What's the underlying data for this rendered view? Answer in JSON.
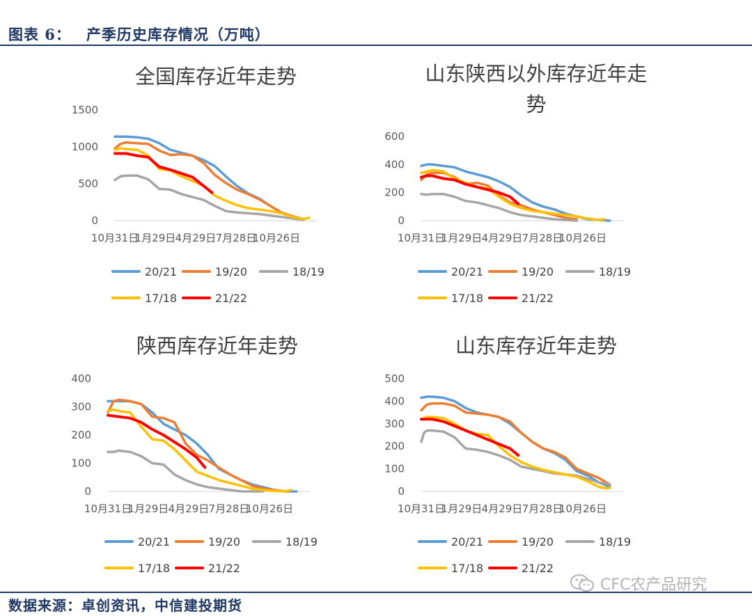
{
  "header": {
    "label": "图表 6：",
    "title": "产季历史库存情况（万吨）"
  },
  "footer": {
    "source": "数据来源：卓创资讯，中信建投期货",
    "watermark": "CFC农产品研究"
  },
  "colors": {
    "20/21": "#5b9bd5",
    "19/20": "#ed7d31",
    "18/19": "#a5a5a5",
    "17/18": "#ffc000",
    "21/22": "#ff0000",
    "brand": "#1f3864"
  },
  "chart_data": [
    {
      "type": "line",
      "title": [
        "全国库存近年走势"
      ],
      "xlabel": "",
      "ylabel": "",
      "x_ticks": [
        "10月31日",
        "1月29日",
        "4月29日",
        "7月28日",
        "10月26日"
      ],
      "xlim": [
        0,
        364
      ],
      "ylim": [
        0,
        1500
      ],
      "y_ticks": [
        0,
        500,
        1000,
        1500
      ],
      "grid": false,
      "legend": "bottom",
      "legend_rows": [
        [
          "20/21",
          "19/20",
          "18/19"
        ],
        [
          "17/18",
          "21/22"
        ]
      ],
      "series": [
        {
          "name": "20/21",
          "x": [
            0,
            20,
            40,
            60,
            80,
            100,
            120,
            140,
            160,
            180,
            200,
            220,
            240,
            260,
            280,
            300,
            320,
            340
          ],
          "y": [
            1140,
            1140,
            1130,
            1110,
            1050,
            960,
            920,
            880,
            820,
            740,
            600,
            470,
            370,
            300,
            200,
            110,
            60,
            20
          ]
        },
        {
          "name": "19/20",
          "x": [
            0,
            10,
            20,
            40,
            60,
            80,
            100,
            120,
            140,
            160,
            180,
            200,
            220,
            240,
            260,
            280,
            300,
            320,
            340
          ],
          "y": [
            980,
            1040,
            1060,
            1050,
            1040,
            950,
            890,
            900,
            880,
            780,
            620,
            510,
            420,
            360,
            290,
            200,
            110,
            60,
            20
          ]
        },
        {
          "name": "18/19",
          "x": [
            0,
            10,
            20,
            40,
            60,
            80,
            100,
            120,
            140,
            160,
            180,
            200,
            220,
            240,
            260,
            280,
            300,
            320,
            340
          ],
          "y": [
            550,
            600,
            610,
            610,
            560,
            430,
            420,
            360,
            320,
            280,
            200,
            130,
            110,
            100,
            90,
            70,
            50,
            30,
            10
          ]
        },
        {
          "name": "17/18",
          "x": [
            0,
            10,
            20,
            40,
            60,
            80,
            100,
            120,
            140,
            160,
            180,
            200,
            220,
            240,
            260,
            280,
            300,
            320,
            340,
            350
          ],
          "y": [
            960,
            980,
            970,
            960,
            880,
            700,
            680,
            600,
            540,
            470,
            340,
            270,
            210,
            170,
            150,
            130,
            100,
            50,
            20,
            40
          ]
        },
        {
          "name": "21/22",
          "x": [
            0,
            20,
            40,
            60,
            80,
            100,
            120,
            140,
            160,
            175
          ],
          "y": [
            910,
            910,
            880,
            860,
            730,
            690,
            640,
            590,
            470,
            380
          ]
        }
      ]
    },
    {
      "type": "line",
      "title": [
        "山东陕西以外库存近年走",
        "势"
      ],
      "xlabel": "",
      "ylabel": "",
      "x_ticks": [
        "10月31日",
        "1月29日",
        "4月29日",
        "7月28日",
        "10月26日"
      ],
      "xlim": [
        0,
        364
      ],
      "ylim": [
        0,
        600
      ],
      "y_ticks": [
        0,
        200,
        400,
        600
      ],
      "grid": false,
      "legend": "bottom",
      "legend_rows": [
        [
          "20/21",
          "19/20",
          "18/19"
        ],
        [
          "17/18",
          "21/22"
        ]
      ],
      "series": [
        {
          "name": "20/21",
          "x": [
            0,
            10,
            20,
            40,
            60,
            80,
            100,
            120,
            140,
            160,
            180,
            200,
            220,
            240,
            260,
            280,
            300,
            320,
            340
          ],
          "y": [
            390,
            400,
            400,
            390,
            380,
            350,
            330,
            310,
            280,
            240,
            180,
            130,
            100,
            80,
            50,
            30,
            10,
            5,
            0
          ]
        },
        {
          "name": "19/20",
          "x": [
            0,
            10,
            20,
            40,
            60,
            80,
            100,
            120,
            140,
            160,
            180,
            200,
            220,
            240,
            260,
            280
          ],
          "y": [
            290,
            330,
            340,
            340,
            310,
            260,
            270,
            250,
            180,
            130,
            110,
            80,
            60,
            40,
            20,
            10
          ]
        },
        {
          "name": "18/19",
          "x": [
            0,
            10,
            20,
            40,
            60,
            80,
            100,
            120,
            140,
            160,
            180,
            200,
            220,
            240,
            260,
            280
          ],
          "y": [
            190,
            185,
            190,
            190,
            170,
            140,
            130,
            110,
            90,
            60,
            40,
            30,
            20,
            10,
            5,
            0
          ]
        },
        {
          "name": "17/18",
          "x": [
            0,
            10,
            20,
            40,
            60,
            80,
            100,
            120,
            140,
            160,
            180,
            200,
            220,
            240,
            260,
            280,
            300,
            320,
            330
          ],
          "y": [
            340,
            350,
            360,
            350,
            300,
            270,
            240,
            230,
            170,
            120,
            90,
            70,
            60,
            50,
            40,
            30,
            15,
            5,
            10
          ]
        },
        {
          "name": "21/22",
          "x": [
            0,
            10,
            20,
            40,
            60,
            80,
            100,
            120,
            140,
            160,
            175
          ],
          "y": [
            310,
            320,
            320,
            300,
            290,
            260,
            240,
            220,
            200,
            170,
            120
          ]
        }
      ]
    },
    {
      "type": "line",
      "title": [
        "陕西库存近年走势"
      ],
      "xlabel": "",
      "ylabel": "",
      "x_ticks": [
        "10月31日",
        "1月29日",
        "4月29日",
        "7月28日",
        "10月26日"
      ],
      "xlim": [
        0,
        364
      ],
      "ylim": [
        0,
        400
      ],
      "y_ticks": [
        0,
        100,
        200,
        300,
        400
      ],
      "grid": false,
      "legend": "bottom",
      "legend_rows": [
        [
          "20/21",
          "19/20",
          "18/19"
        ],
        [
          "17/18",
          "21/22"
        ]
      ],
      "series": [
        {
          "name": "20/21",
          "x": [
            0,
            10,
            20,
            40,
            60,
            80,
            100,
            120,
            140,
            160,
            180,
            200,
            220,
            240,
            260,
            280,
            300,
            320,
            340
          ],
          "y": [
            320,
            320,
            320,
            320,
            310,
            280,
            240,
            220,
            200,
            170,
            130,
            80,
            60,
            40,
            25,
            15,
            5,
            0,
            0
          ]
        },
        {
          "name": "19/20",
          "x": [
            0,
            10,
            20,
            40,
            60,
            80,
            100,
            120,
            140,
            160,
            180,
            200,
            220,
            240,
            260,
            280,
            300,
            320
          ],
          "y": [
            280,
            320,
            325,
            320,
            310,
            265,
            260,
            245,
            170,
            130,
            110,
            85,
            60,
            40,
            20,
            10,
            5,
            0
          ]
        },
        {
          "name": "18/19",
          "x": [
            0,
            10,
            20,
            40,
            60,
            80,
            100,
            120,
            140,
            160,
            180,
            200,
            220,
            240,
            260,
            280
          ],
          "y": [
            140,
            140,
            145,
            140,
            125,
            100,
            95,
            60,
            40,
            25,
            15,
            10,
            5,
            0,
            0,
            0
          ]
        },
        {
          "name": "17/18",
          "x": [
            0,
            10,
            20,
            40,
            60,
            80,
            100,
            120,
            140,
            160,
            180,
            200,
            220,
            240,
            260,
            280,
            300,
            320,
            330
          ],
          "y": [
            285,
            290,
            285,
            280,
            230,
            185,
            180,
            150,
            110,
            70,
            55,
            40,
            30,
            20,
            10,
            5,
            2,
            0,
            5
          ]
        },
        {
          "name": "21/22",
          "x": [
            0,
            20,
            40,
            60,
            80,
            100,
            120,
            140,
            160,
            175
          ],
          "y": [
            270,
            265,
            260,
            245,
            220,
            200,
            175,
            150,
            120,
            85
          ]
        }
      ]
    },
    {
      "type": "line",
      "title": [
        "山东库存近年走势"
      ],
      "xlabel": "",
      "ylabel": "",
      "x_ticks": [
        "10月31日",
        "1月29日",
        "4月29日",
        "7月28日",
        "10月26日"
      ],
      "xlim": [
        0,
        364
      ],
      "ylim": [
        0,
        500
      ],
      "y_ticks": [
        0,
        100,
        200,
        300,
        400,
        500
      ],
      "grid": false,
      "legend": "bottom",
      "legend_rows": [
        [
          "20/21",
          "19/20",
          "18/19"
        ],
        [
          "17/18",
          "21/22"
        ]
      ],
      "series": [
        {
          "name": "20/21",
          "x": [
            0,
            10,
            20,
            40,
            60,
            80,
            100,
            120,
            140,
            160,
            180,
            200,
            220,
            240,
            260,
            280,
            300,
            320,
            340
          ],
          "y": [
            415,
            420,
            420,
            415,
            400,
            370,
            350,
            340,
            330,
            300,
            260,
            220,
            190,
            170,
            140,
            90,
            70,
            40,
            20
          ]
        },
        {
          "name": "19/20",
          "x": [
            0,
            10,
            20,
            40,
            60,
            80,
            100,
            120,
            140,
            160,
            180,
            200,
            220,
            240,
            260,
            280,
            300,
            320,
            340
          ],
          "y": [
            360,
            385,
            390,
            390,
            380,
            350,
            345,
            340,
            330,
            310,
            260,
            220,
            190,
            175,
            150,
            100,
            80,
            60,
            30
          ]
        },
        {
          "name": "18/19",
          "x": [
            0,
            5,
            10,
            20,
            40,
            60,
            80,
            100,
            120,
            140,
            160,
            180,
            200,
            220,
            240,
            260,
            280,
            300,
            320,
            340
          ],
          "y": [
            220,
            260,
            270,
            270,
            265,
            240,
            190,
            185,
            175,
            160,
            140,
            110,
            100,
            90,
            80,
            75,
            70,
            55,
            40,
            30
          ]
        },
        {
          "name": "17/18",
          "x": [
            0,
            10,
            20,
            40,
            60,
            80,
            100,
            120,
            140,
            160,
            180,
            200,
            220,
            240,
            260,
            280,
            300,
            320,
            330,
            340
          ],
          "y": [
            320,
            330,
            330,
            325,
            300,
            270,
            255,
            250,
            200,
            160,
            130,
            110,
            95,
            85,
            75,
            65,
            45,
            20,
            15,
            15
          ]
        },
        {
          "name": "21/22",
          "x": [
            0,
            20,
            40,
            60,
            80,
            100,
            120,
            140,
            160,
            175
          ],
          "y": [
            320,
            320,
            310,
            290,
            270,
            250,
            230,
            210,
            190,
            160
          ]
        }
      ]
    }
  ]
}
